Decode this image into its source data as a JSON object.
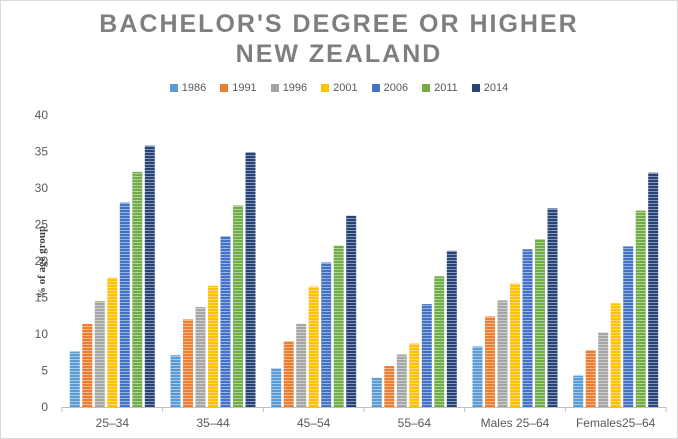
{
  "chart_data": {
    "type": "bar",
    "title_line1": "BACHELOR'S DEGREE OR HIGHER",
    "title_line2": "NEW ZEALAND",
    "ylabel": "% of age group",
    "xlabel": "",
    "ylim": [
      0,
      40
    ],
    "yticks": [
      "0",
      "5",
      "10",
      "15",
      "20",
      "25",
      "30",
      "35",
      "40"
    ],
    "categories": [
      "25–34",
      "35–44",
      "45–54",
      "55–64",
      "Males 25–64",
      "Females25–64"
    ],
    "legend_position": "top",
    "grid": false,
    "series": [
      {
        "name": "1986",
        "color": "#5b9bd5",
        "values": [
          7.6,
          7.1,
          5.3,
          4.0,
          8.3,
          4.3
        ]
      },
      {
        "name": "1991",
        "color": "#ed7d31",
        "values": [
          11.4,
          12.0,
          9.0,
          5.6,
          12.4,
          7.8
        ]
      },
      {
        "name": "1996",
        "color": "#a5a5a5",
        "values": [
          14.5,
          13.7,
          11.4,
          7.2,
          14.6,
          10.2
        ]
      },
      {
        "name": "2001",
        "color": "#ffc000",
        "values": [
          17.7,
          16.6,
          16.5,
          8.7,
          16.9,
          14.2
        ]
      },
      {
        "name": "2006",
        "color": "#4472c4",
        "values": [
          28.0,
          23.4,
          19.8,
          14.1,
          21.6,
          22.0
        ]
      },
      {
        "name": "2011",
        "color": "#70ad47",
        "values": [
          32.2,
          27.6,
          22.1,
          17.9,
          23.0,
          26.9
        ]
      },
      {
        "name": "2014",
        "color": "#264478",
        "values": [
          35.8,
          34.9,
          26.2,
          21.4,
          27.2,
          32.1
        ]
      }
    ]
  }
}
